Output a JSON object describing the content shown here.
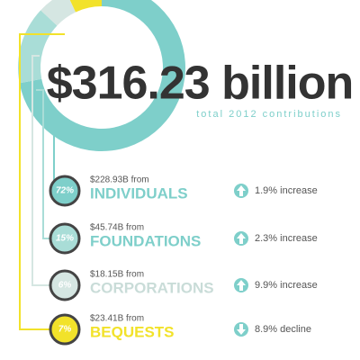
{
  "chart_data": {
    "type": "donut",
    "title": "$316.23 billion",
    "subtitle": "total 2012 contributions",
    "categories": [
      "INDIVIDUALS",
      "FOUNDATIONS",
      "CORPORATIONS",
      "BEQUESTS"
    ],
    "values": [
      72,
      15,
      6,
      7
    ],
    "value_labels": [
      "72%",
      "15%",
      "6%",
      "7%"
    ],
    "colors": [
      "#7ecfca",
      "#a9ddd7",
      "#d5e6e2",
      "#f2e22a"
    ],
    "label_colors": [
      "#7ecfca",
      "#7ecfca",
      "#c9dcd8",
      "#f2e22a"
    ],
    "amounts": [
      "$228.93B from",
      "$45.74B from",
      "$18.15B from",
      "$23.41B from"
    ],
    "changes": [
      "1.9% increase",
      "2.3% increase",
      "9.9% increase",
      "8.9% decline"
    ]
  }
}
